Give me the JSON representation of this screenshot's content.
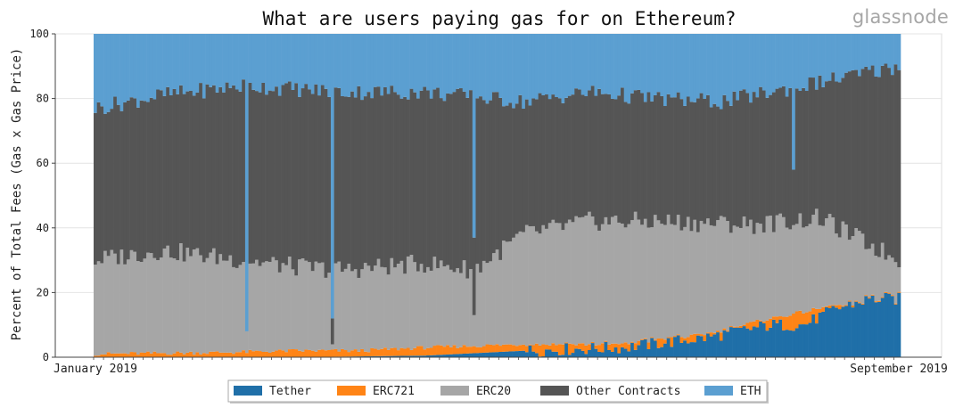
{
  "brand": {
    "logo_text": "glassnode"
  },
  "chart_data": {
    "type": "bar",
    "stacked": true,
    "normalized_percent": true,
    "title": "What are users paying gas for on Ethereum?",
    "xlabel": "",
    "ylabel": "Percent of Total Fees (Gas x Gas Price)",
    "ylim": [
      0,
      100
    ],
    "yticks": [
      0,
      20,
      40,
      60,
      80,
      100
    ],
    "x_start_label": "January 2019",
    "x_end_label": "September 2019",
    "date_range": [
      "2019-01-01",
      "2019-09-01"
    ],
    "grid": true,
    "legend_position": "bottom-center",
    "series": [
      {
        "name": "Tether",
        "color": "#1f6fa8"
      },
      {
        "name": "ERC721",
        "color": "#ff8416"
      },
      {
        "name": "ERC20",
        "color": "#a6a6a6"
      },
      {
        "name": "Other Contracts",
        "color": "#555555"
      },
      {
        "name": "ETH",
        "color": "#5b9fd1"
      }
    ],
    "cumulative_top_anchors": {
      "description_keys": [
        "tether",
        "erc721",
        "erc20",
        "other"
      ],
      "tether": [
        [
          0,
          0
        ],
        [
          60,
          0
        ],
        [
          100,
          0.5
        ],
        [
          130,
          2
        ],
        [
          160,
          3
        ],
        [
          185,
          6
        ],
        [
          205,
          10
        ],
        [
          215,
          10
        ],
        [
          225,
          15
        ],
        [
          235,
          18
        ],
        [
          244,
          18
        ]
      ],
      "erc721": [
        [
          0,
          1
        ],
        [
          40,
          1.5
        ],
        [
          60,
          2
        ],
        [
          80,
          2
        ],
        [
          100,
          3
        ],
        [
          130,
          4
        ],
        [
          160,
          4
        ],
        [
          185,
          7
        ],
        [
          205,
          12
        ],
        [
          225,
          16
        ],
        [
          244,
          14
        ]
      ],
      "erc20": [
        [
          0,
          30
        ],
        [
          20,
          33
        ],
        [
          45,
          30
        ],
        [
          60,
          28
        ],
        [
          75,
          27
        ],
        [
          100,
          29
        ],
        [
          115,
          27
        ],
        [
          130,
          38
        ],
        [
          150,
          42
        ],
        [
          170,
          42
        ],
        [
          200,
          41
        ],
        [
          220,
          43
        ],
        [
          244,
          30
        ]
      ],
      "other": [
        [
          0,
          77
        ],
        [
          20,
          81
        ],
        [
          45,
          84
        ],
        [
          75,
          82
        ],
        [
          100,
          82
        ],
        [
          130,
          79
        ],
        [
          150,
          82
        ],
        [
          170,
          80
        ],
        [
          190,
          79
        ],
        [
          210,
          83
        ],
        [
          244,
          90
        ]
      ]
    },
    "spikes": [
      {
        "day": 46,
        "erc20": 8,
        "other": 8,
        "eth_to": 100
      },
      {
        "day": 72,
        "erc20": 4,
        "other": 12,
        "eth_to": 100
      },
      {
        "day": 115,
        "erc20": 13,
        "other": 37,
        "eth_to": 100
      },
      {
        "day": 212,
        "other": 58
      }
    ],
    "n_days": 245
  }
}
